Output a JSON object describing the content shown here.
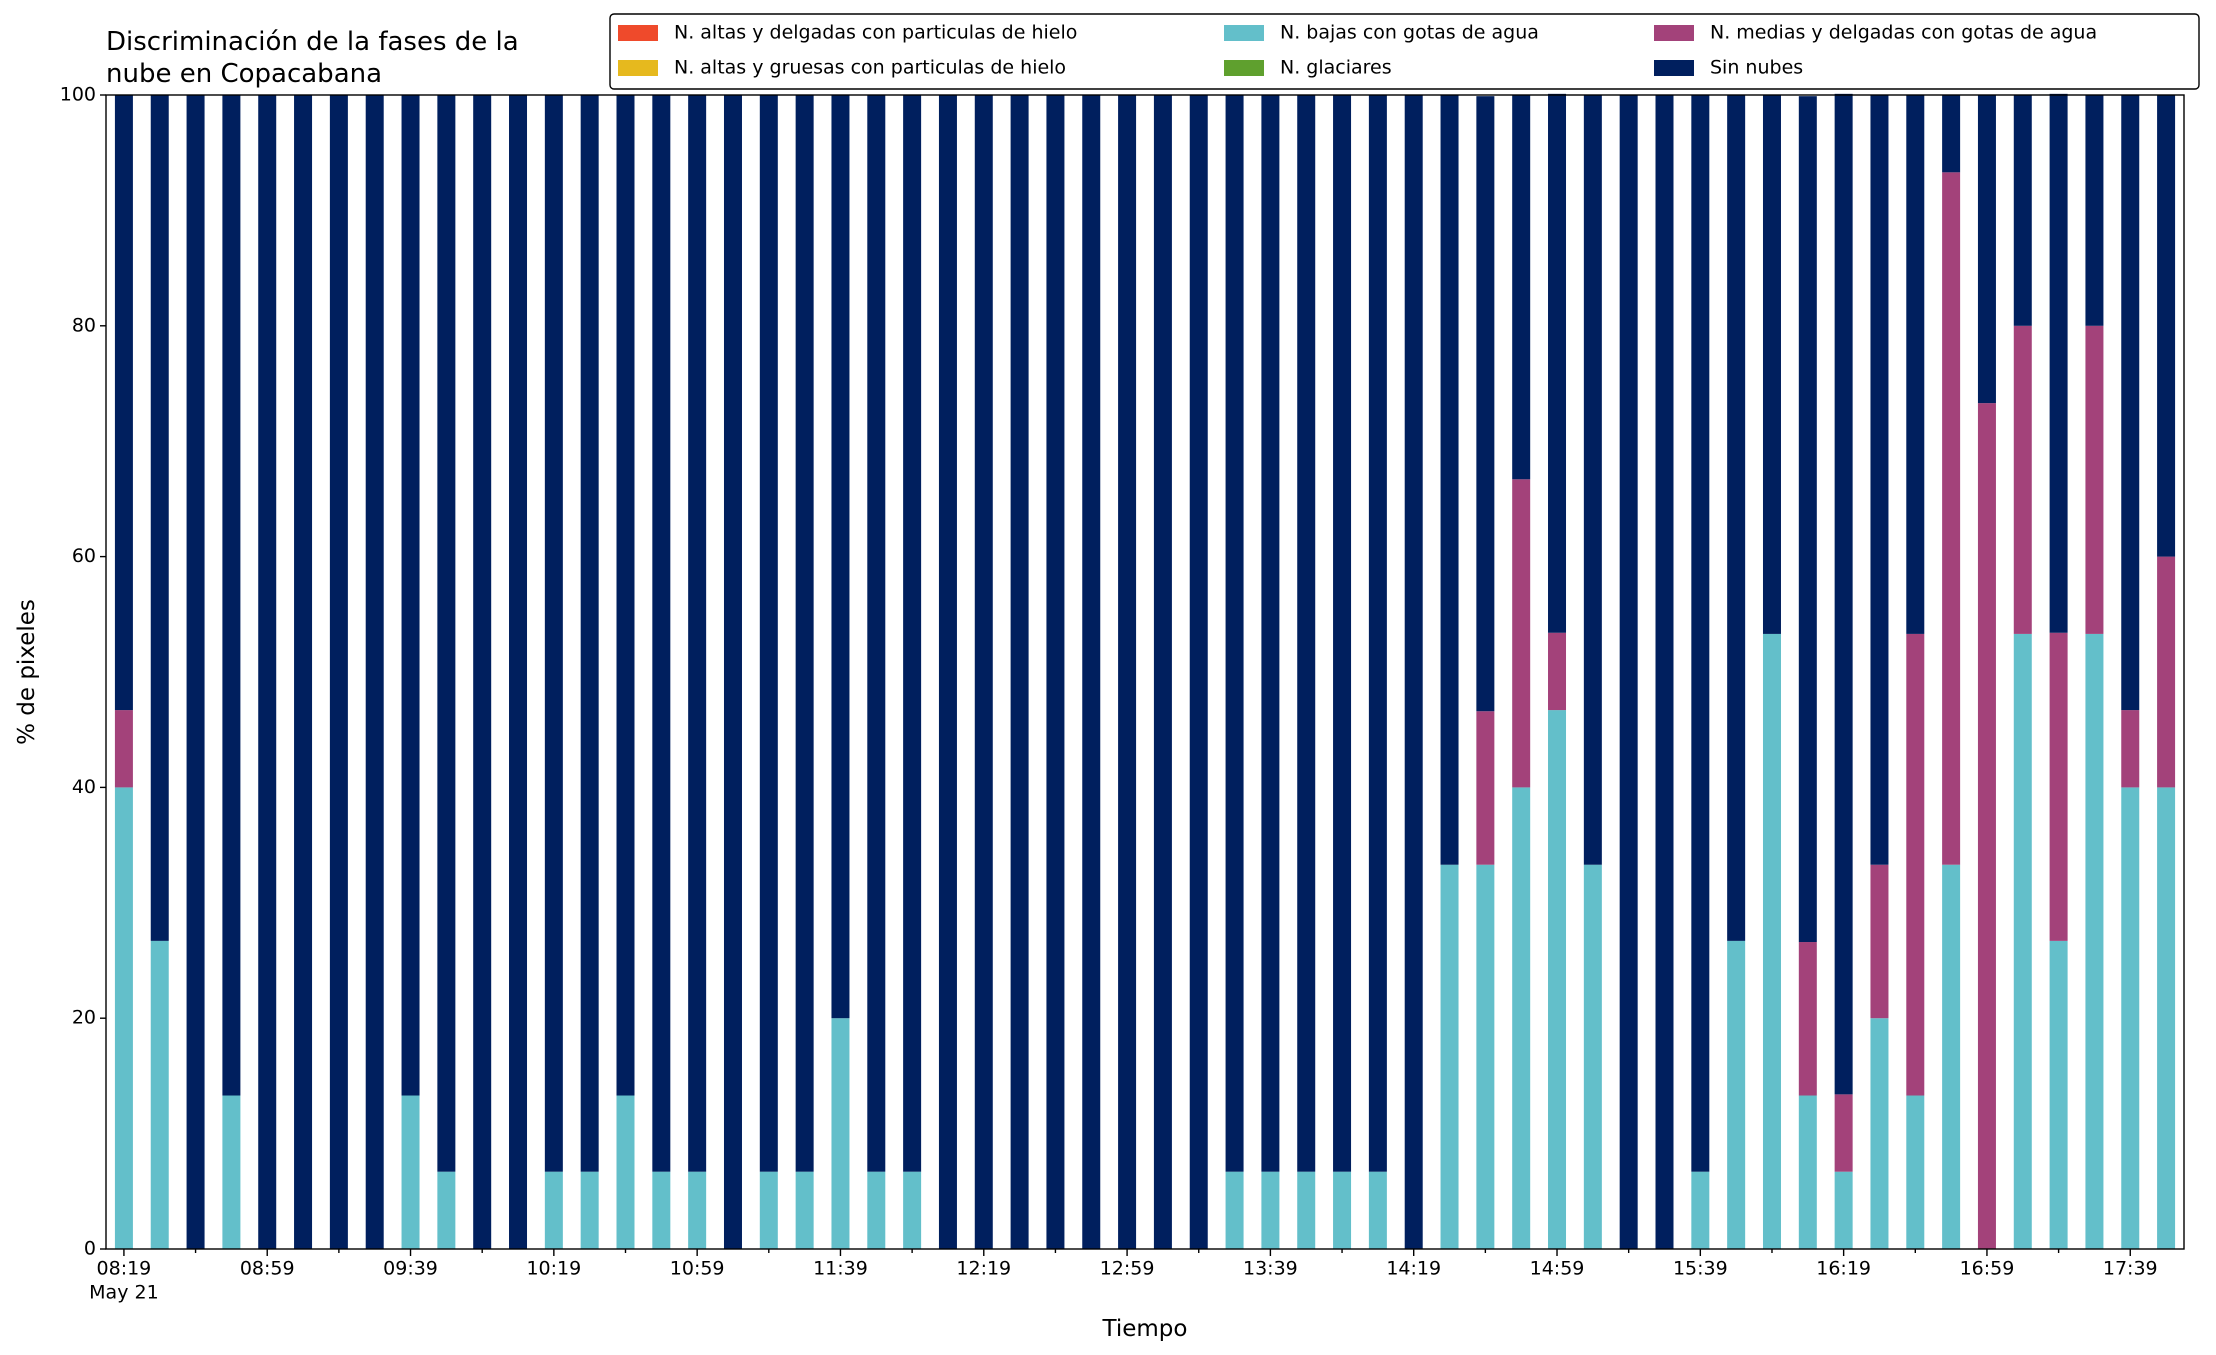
{
  "chart_data": {
    "type": "stacked_bar",
    "title": [
      "Discriminación de la fases de la",
      "nube en Copacabana"
    ],
    "x_label": "Tiempo",
    "y_label": "% de pixeles",
    "date_label": "May 21",
    "categories": [
      "08:19",
      null,
      null,
      null,
      "08:59",
      null,
      null,
      null,
      "09:39",
      null,
      null,
      null,
      "10:19",
      null,
      null,
      null,
      "10:59",
      null,
      null,
      null,
      "11:39",
      null,
      null,
      null,
      "12:19",
      null,
      null,
      null,
      "12:59",
      null,
      null,
      null,
      "13:39",
      null,
      null,
      null,
      "14:19",
      null,
      null,
      null,
      "14:59",
      null,
      null,
      null,
      "15:39",
      null,
      null,
      null,
      "16:19",
      null,
      null,
      null,
      "16:59",
      null,
      null,
      null,
      "17:39",
      null
    ],
    "ylim": [
      0,
      100
    ],
    "yticks": [
      0,
      20,
      40,
      60,
      80,
      100
    ],
    "legend": "upper right",
    "series": [
      {
        "name": "N. altas y delgadas con particulas de hielo",
        "color": "#ef4a2b",
        "values": [
          0,
          0,
          0,
          0,
          0,
          0,
          0,
          0,
          0,
          0,
          0,
          0,
          0,
          0,
          0,
          0,
          0,
          0,
          0,
          0,
          0,
          0,
          0,
          0,
          0,
          0,
          0,
          0,
          0,
          0,
          0,
          0,
          0,
          0,
          0,
          0,
          0,
          0,
          0,
          0,
          0,
          0,
          0,
          0,
          0,
          0,
          0,
          0,
          0,
          0,
          0,
          0,
          0,
          0,
          0,
          0,
          0,
          0
        ]
      },
      {
        "name": "N. altas y gruesas con particulas de hielo",
        "color": "#e6b91e",
        "values": [
          0,
          0,
          0,
          0,
          0,
          0,
          0,
          0,
          0,
          0,
          0,
          0,
          0,
          0,
          0,
          0,
          0,
          0,
          0,
          0,
          0,
          0,
          0,
          0,
          0,
          0,
          0,
          0,
          0,
          0,
          0,
          0,
          0,
          0,
          0,
          0,
          0,
          0,
          0,
          0,
          0,
          0,
          0,
          0,
          0,
          0,
          0,
          0,
          0,
          0,
          0,
          0,
          0,
          0,
          0,
          0,
          0,
          0
        ]
      },
      {
        "name": "N. bajas con gotas de agua",
        "color": "#63bfca",
        "values": [
          40,
          26.7,
          0,
          13.3,
          0,
          0,
          0,
          0,
          13.3,
          6.7,
          0,
          0,
          6.7,
          6.7,
          13.3,
          6.7,
          6.7,
          0,
          6.7,
          6.7,
          20,
          6.7,
          6.7,
          0,
          0,
          0,
          0,
          0,
          0,
          0,
          0,
          6.7,
          6.7,
          6.7,
          6.7,
          6.7,
          0,
          33.3,
          33.3,
          40,
          46.7,
          33.3,
          0,
          0,
          6.7,
          26.7,
          53.3,
          13.3,
          6.7,
          20,
          13.3,
          33.3,
          0,
          53.3,
          26.7,
          53.3,
          40,
          40
        ]
      },
      {
        "name": "N. glaciares",
        "color": "#5fa02e",
        "values": [
          0,
          0,
          0,
          0,
          0,
          0,
          0,
          0,
          0,
          0,
          0,
          0,
          0,
          0,
          0,
          0,
          0,
          0,
          0,
          0,
          0,
          0,
          0,
          0,
          0,
          0,
          0,
          0,
          0,
          0,
          0,
          0,
          0,
          0,
          0,
          0,
          0,
          0,
          0,
          0,
          0,
          0,
          0,
          0,
          0,
          0,
          0,
          0,
          0,
          0,
          0,
          0,
          0,
          0,
          0,
          0,
          0,
          0
        ]
      },
      {
        "name": "N. medias y delgadas con gotas de agua",
        "color": "#a3427a",
        "values": [
          6.7,
          0,
          0,
          0,
          0,
          0,
          0,
          0,
          0,
          0,
          0,
          0,
          0,
          0,
          0,
          0,
          0,
          0,
          0,
          0,
          0,
          0,
          0,
          0,
          0,
          0,
          0,
          0,
          0,
          0,
          0,
          0,
          0,
          0,
          0,
          0,
          0,
          0,
          13.3,
          26.7,
          6.7,
          0,
          0,
          0,
          0,
          0,
          0,
          13.3,
          6.7,
          13.3,
          40,
          60,
          73.3,
          26.7,
          26.7,
          26.7,
          6.7,
          20
        ]
      },
      {
        "name": "Sin nubes",
        "color": "#001f5e",
        "values": [
          53.3,
          73.3,
          100,
          86.7,
          100,
          100,
          100,
          100,
          86.7,
          93.3,
          100,
          100,
          93.3,
          93.3,
          86.7,
          93.3,
          93.3,
          100,
          93.3,
          93.3,
          80,
          93.3,
          93.3,
          100,
          100,
          100,
          100,
          100,
          100,
          100,
          100,
          93.3,
          93.3,
          93.3,
          93.3,
          93.3,
          100,
          66.7,
          53.3,
          33.3,
          46.7,
          66.7,
          100,
          100,
          93.3,
          73.3,
          46.7,
          73.3,
          86.7,
          66.7,
          46.7,
          6.7,
          26.7,
          20,
          46.7,
          20,
          53.3,
          40
        ]
      }
    ]
  }
}
